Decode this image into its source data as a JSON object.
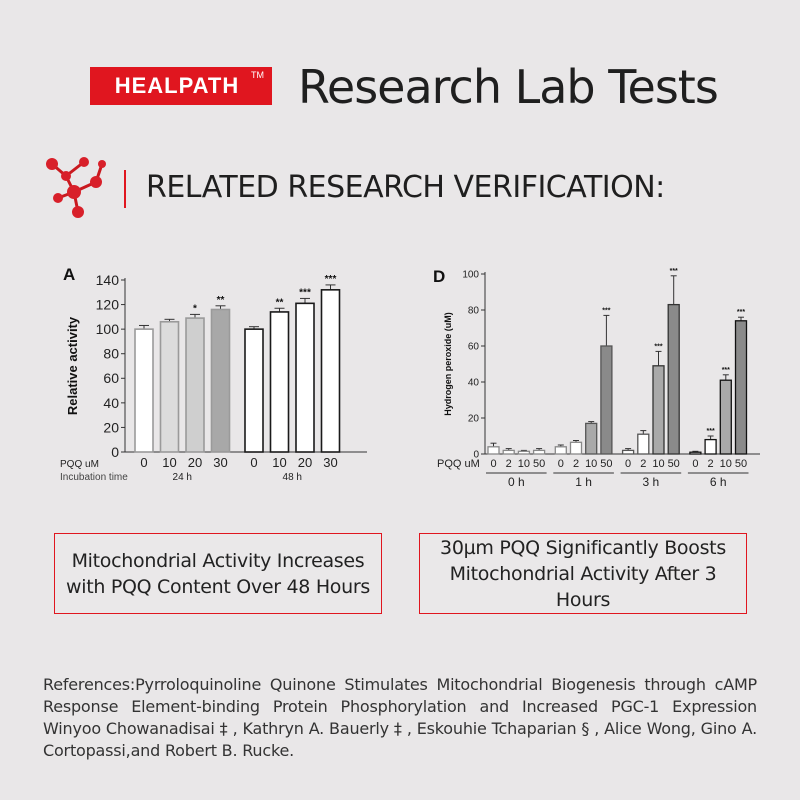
{
  "header": {
    "brand": "HEALPATH",
    "trademark": "TM",
    "title": "Research Lab Tests",
    "subtitle": "RELATED RESEARCH VERIFICATION:",
    "accent_color": "#e0161f"
  },
  "captions": {
    "left": "Mitochondrial Activity Increases with PQQ Content Over 48 Hours",
    "right": "30µm PQQ Significantly Boosts Mitochondrial Activity After 3 Hours"
  },
  "references": "References:Pyrroloquinoline Quinone Stimulates Mitochondrial Biogenesis through cAMP Response Element-binding Protein Phosphorylation and Increased PGC-1 Expression Winyoo Chowanadisai ‡ , Kathryn A. Bauerly ‡ , Eskouhie Tchaparian § , Alice Wong, Gino A. Cortopassi,and Robert B. Rucke.",
  "chart_data": [
    {
      "type": "bar",
      "panel_label": "A",
      "ylabel": "Relative activity",
      "ylim": [
        0,
        140
      ],
      "yticks": [
        0,
        20,
        40,
        60,
        80,
        100,
        120,
        140
      ],
      "x_row_label": "PQQ uM",
      "group_row_label": "Incubation time",
      "categories": [
        "0",
        "10",
        "20",
        "30",
        "0",
        "10",
        "20",
        "30"
      ],
      "groups": [
        {
          "label": "24 h",
          "count": 4
        },
        {
          "label": "48 h",
          "count": 4
        }
      ],
      "values": [
        100,
        106,
        109,
        116,
        100,
        114,
        121,
        132
      ],
      "errors": [
        3,
        2,
        3,
        3,
        2,
        3,
        4,
        4
      ],
      "significance": [
        "",
        "",
        "*",
        "**",
        "",
        "**",
        "***",
        "***"
      ],
      "bar_colors": [
        "#ffffff",
        "#dcdcdc",
        "#cfcfcf",
        "#a8a8a8",
        "#ffffff",
        "#ffffff",
        "#ffffff",
        "#ffffff"
      ],
      "bar_borders": [
        "#9a9a9a",
        "#9a9a9a",
        "#9a9a9a",
        "#9a9a9a",
        "#1a1a1a",
        "#1a1a1a",
        "#1a1a1a",
        "#1a1a1a"
      ]
    },
    {
      "type": "bar",
      "panel_label": "D",
      "ylabel": "Hydrogen peroxide (uM)",
      "ylim": [
        0,
        100
      ],
      "yticks": [
        0,
        20,
        40,
        60,
        80,
        100
      ],
      "x_row_label": "PQQ uM",
      "categories": [
        "0",
        "2",
        "10",
        "50",
        "0",
        "2",
        "10",
        "50",
        "0",
        "2",
        "10",
        "50",
        "0",
        "2",
        "10",
        "50"
      ],
      "groups": [
        {
          "label": "0 h",
          "count": 4
        },
        {
          "label": "1 h",
          "count": 4
        },
        {
          "label": "3 h",
          "count": 4
        },
        {
          "label": "6 h",
          "count": 4
        }
      ],
      "values": [
        4,
        2,
        1.5,
        2,
        4,
        6.5,
        17,
        60,
        2,
        11,
        49,
        83,
        1,
        8,
        41,
        74
      ],
      "errors": [
        2,
        1,
        0.5,
        1,
        1,
        1,
        1,
        17,
        1,
        2,
        8,
        16,
        0.5,
        2,
        3,
        2
      ],
      "significance": [
        "",
        "",
        "",
        "",
        "",
        "",
        "",
        "***",
        "",
        "",
        "***",
        "***",
        "",
        "***",
        "***",
        "***"
      ],
      "bar_colors": [
        "#ffffff",
        "#ffffff",
        "#ffffff",
        "#ffffff",
        "#ffffff",
        "#ffffff",
        "#a9a9a9",
        "#8a8a8a",
        "#ffffff",
        "#ffffff",
        "#a9a9a9",
        "#8a8a8a",
        "#ffffff",
        "#ffffff",
        "#a9a9a9",
        "#8a8a8a"
      ],
      "bar_borders": [
        "#888888",
        "#888888",
        "#888888",
        "#888888",
        "#888888",
        "#888888",
        "#555555",
        "#555555",
        "#555555",
        "#555555",
        "#333333",
        "#333333",
        "#111111",
        "#111111",
        "#111111",
        "#111111"
      ]
    }
  ]
}
